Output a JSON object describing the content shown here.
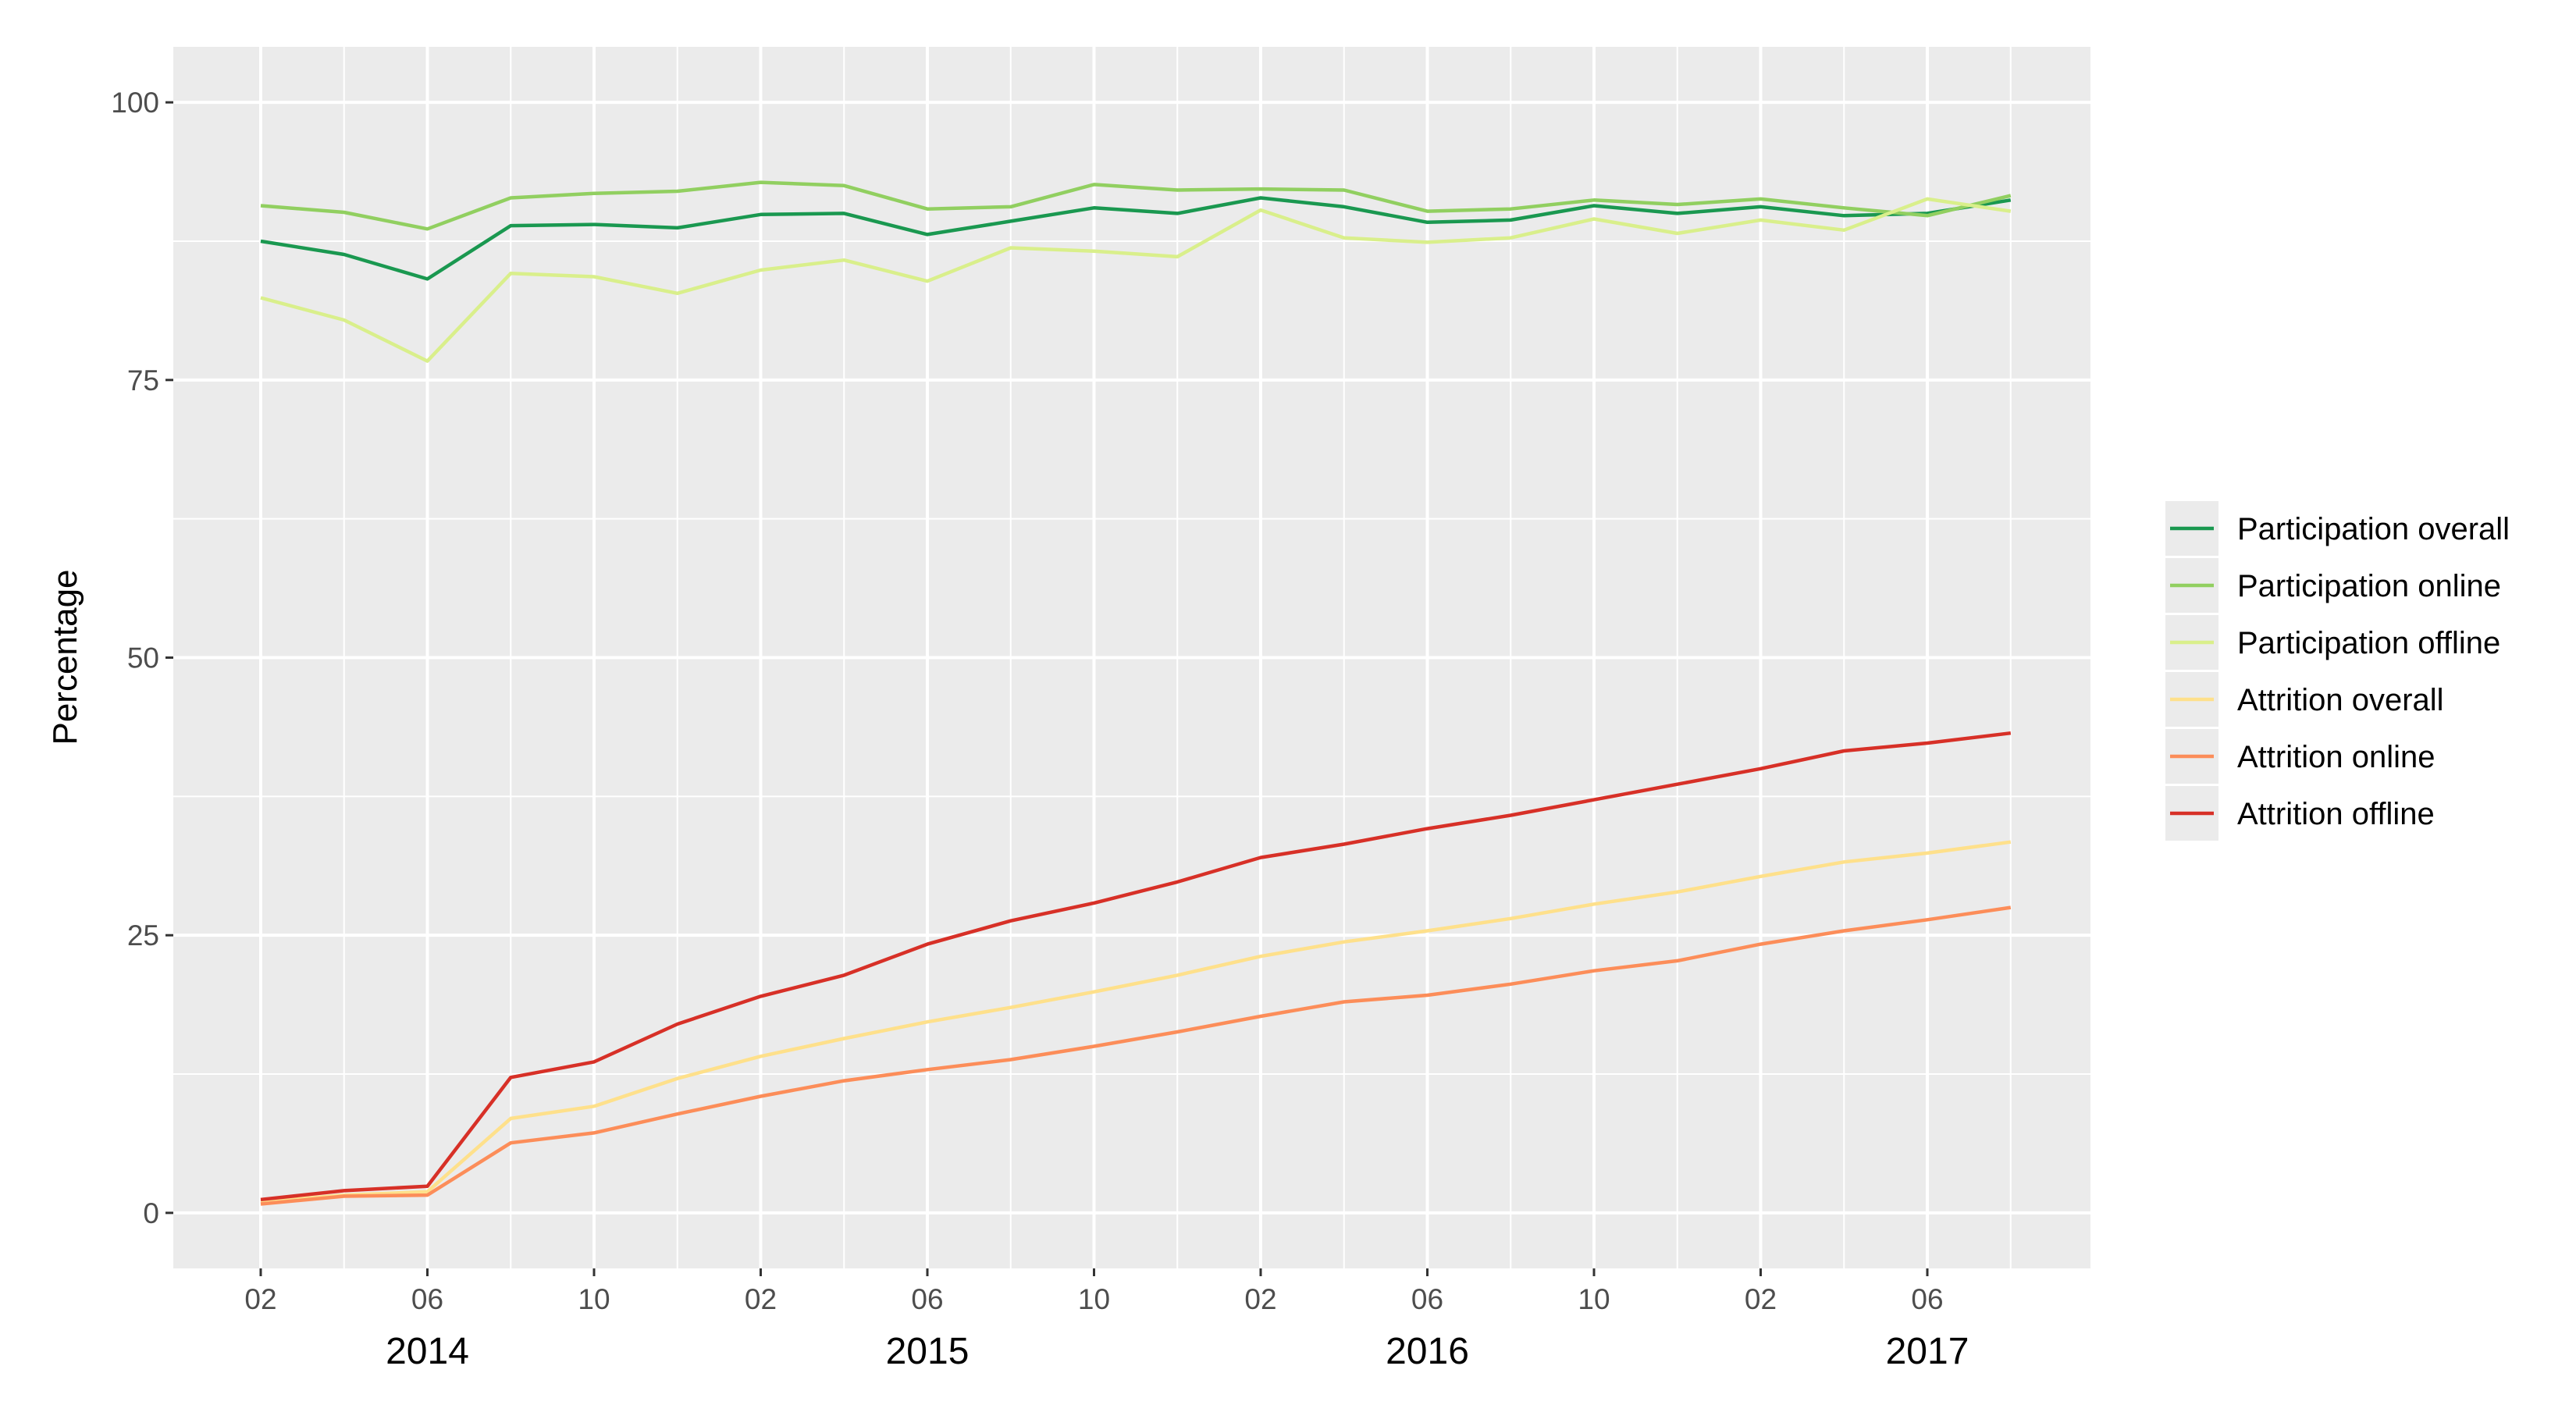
{
  "chart_data": {
    "type": "line",
    "title": "",
    "xlabel": "",
    "ylabel": "Percentage",
    "ylim": [
      -5,
      105
    ],
    "y_ticks": [
      "0",
      "25",
      "50",
      "75",
      "100"
    ],
    "x_month_ticks": [
      "02",
      "06",
      "10",
      "02",
      "06",
      "10",
      "02",
      "06",
      "10",
      "02",
      "06"
    ],
    "x_year_labels": [
      "2014",
      "2015",
      "2016",
      "2017"
    ],
    "grid": true,
    "legend_position": "right",
    "x": [
      "2014-02",
      "2014-04",
      "2014-06",
      "2014-08",
      "2014-10",
      "2014-12",
      "2015-02",
      "2015-04",
      "2015-06",
      "2015-08",
      "2015-10",
      "2015-12",
      "2016-02",
      "2016-04",
      "2016-06",
      "2016-08",
      "2016-10",
      "2016-12",
      "2017-02",
      "2017-04",
      "2017-06",
      "2017-08"
    ],
    "series": [
      {
        "name": "Participation overall",
        "color": "#1a9850",
        "values": [
          87.5,
          86.3,
          84.1,
          88.9,
          89.0,
          88.7,
          89.9,
          90.0,
          88.1,
          89.3,
          90.5,
          90.0,
          91.4,
          90.6,
          89.2,
          89.4,
          90.7,
          90.0,
          90.6,
          89.8,
          90.0,
          91.2
        ]
      },
      {
        "name": "Participation online",
        "color": "#91cf60",
        "values": [
          90.7,
          90.1,
          88.6,
          91.4,
          91.8,
          92.0,
          92.8,
          92.5,
          90.4,
          90.6,
          92.6,
          92.1,
          92.2,
          92.1,
          90.2,
          90.4,
          91.2,
          90.8,
          91.3,
          90.5,
          89.8,
          91.6
        ]
      },
      {
        "name": "Participation offline",
        "color": "#d9ef8b",
        "values": [
          82.4,
          80.4,
          76.7,
          84.6,
          84.3,
          82.8,
          84.9,
          85.8,
          83.9,
          86.9,
          86.6,
          86.1,
          90.3,
          87.8,
          87.4,
          87.8,
          89.5,
          88.2,
          89.4,
          88.5,
          91.3,
          90.2
        ]
      },
      {
        "name": "Attrition overall",
        "color": "#fee08b",
        "values": [
          1.0,
          1.6,
          1.9,
          8.5,
          9.6,
          12.1,
          14.1,
          15.7,
          17.2,
          18.5,
          19.9,
          21.4,
          23.1,
          24.4,
          25.4,
          26.5,
          27.8,
          28.9,
          30.3,
          31.6,
          32.4,
          33.4
        ]
      },
      {
        "name": "Attrition online",
        "color": "#fc8d59",
        "values": [
          0.8,
          1.5,
          1.6,
          6.3,
          7.2,
          8.9,
          10.5,
          11.9,
          12.9,
          13.8,
          15.0,
          16.3,
          17.7,
          19.0,
          19.6,
          20.6,
          21.8,
          22.7,
          24.2,
          25.4,
          26.4,
          27.5
        ]
      },
      {
        "name": "Attrition offline",
        "color": "#d73027",
        "values": [
          1.2,
          2.0,
          2.4,
          12.2,
          13.6,
          17.0,
          19.5,
          21.4,
          24.2,
          26.3,
          27.9,
          29.8,
          32.0,
          33.2,
          34.6,
          35.8,
          37.2,
          38.6,
          40.0,
          41.6,
          42.3,
          43.2
        ]
      }
    ]
  }
}
